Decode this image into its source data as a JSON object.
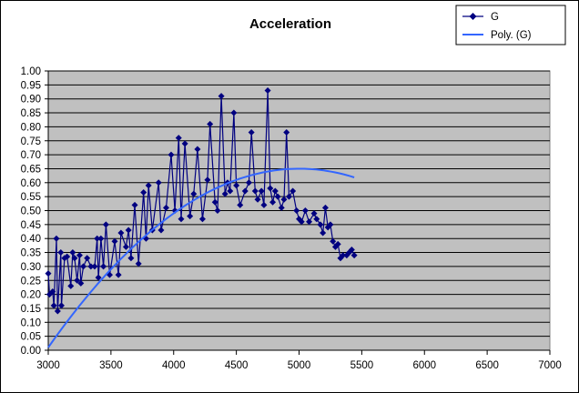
{
  "chart_data": {
    "type": "line",
    "title": "Acceleration",
    "xlabel": "",
    "ylabel": "",
    "xlim": [
      3000,
      7000
    ],
    "ylim": [
      0,
      1.0
    ],
    "x_ticks": [
      "3000",
      "3500",
      "4000",
      "4500",
      "5000",
      "5500",
      "6000",
      "6500",
      "7000"
    ],
    "y_ticks": [
      "0.00",
      "0.05",
      "0.10",
      "0.15",
      "0.20",
      "0.25",
      "0.30",
      "0.35",
      "0.40",
      "0.45",
      "0.50",
      "0.55",
      "0.60",
      "0.65",
      "0.70",
      "0.75",
      "0.80",
      "0.85",
      "0.90",
      "0.95",
      "1.00"
    ],
    "grid": "horizontal",
    "plot_background": "#c0c0c0",
    "legend_position": "top-right",
    "series": [
      {
        "name": "G",
        "color": "#000080",
        "marker": "diamond",
        "points": [
          [
            3000,
            0.275
          ],
          [
            3010,
            0.2
          ],
          [
            3035,
            0.21
          ],
          [
            3045,
            0.16
          ],
          [
            3065,
            0.4
          ],
          [
            3075,
            0.14
          ],
          [
            3100,
            0.35
          ],
          [
            3105,
            0.16
          ],
          [
            3130,
            0.33
          ],
          [
            3150,
            0.335
          ],
          [
            3180,
            0.23
          ],
          [
            3195,
            0.35
          ],
          [
            3210,
            0.33
          ],
          [
            3230,
            0.25
          ],
          [
            3250,
            0.34
          ],
          [
            3260,
            0.24
          ],
          [
            3280,
            0.3
          ],
          [
            3310,
            0.33
          ],
          [
            3340,
            0.3
          ],
          [
            3370,
            0.3
          ],
          [
            3390,
            0.4
          ],
          [
            3400,
            0.26
          ],
          [
            3420,
            0.4
          ],
          [
            3440,
            0.3
          ],
          [
            3460,
            0.45
          ],
          [
            3490,
            0.27
          ],
          [
            3530,
            0.39
          ],
          [
            3560,
            0.27
          ],
          [
            3580,
            0.42
          ],
          [
            3620,
            0.37
          ],
          [
            3640,
            0.43
          ],
          [
            3660,
            0.33
          ],
          [
            3690,
            0.52
          ],
          [
            3720,
            0.31
          ],
          [
            3760,
            0.565
          ],
          [
            3780,
            0.4
          ],
          [
            3800,
            0.59
          ],
          [
            3830,
            0.43
          ],
          [
            3880,
            0.6
          ],
          [
            3900,
            0.43
          ],
          [
            3940,
            0.51
          ],
          [
            3980,
            0.7
          ],
          [
            4010,
            0.5
          ],
          [
            4040,
            0.76
          ],
          [
            4060,
            0.47
          ],
          [
            4090,
            0.74
          ],
          [
            4130,
            0.48
          ],
          [
            4160,
            0.56
          ],
          [
            4190,
            0.72
          ],
          [
            4230,
            0.47
          ],
          [
            4270,
            0.61
          ],
          [
            4290,
            0.81
          ],
          [
            4330,
            0.53
          ],
          [
            4350,
            0.5
          ],
          [
            4380,
            0.91
          ],
          [
            4410,
            0.56
          ],
          [
            4430,
            0.6
          ],
          [
            4450,
            0.57
          ],
          [
            4480,
            0.85
          ],
          [
            4500,
            0.59
          ],
          [
            4530,
            0.52
          ],
          [
            4570,
            0.57
          ],
          [
            4600,
            0.6
          ],
          [
            4620,
            0.78
          ],
          [
            4650,
            0.57
          ],
          [
            4670,
            0.54
          ],
          [
            4700,
            0.57
          ],
          [
            4720,
            0.52
          ],
          [
            4750,
            0.93
          ],
          [
            4770,
            0.58
          ],
          [
            4790,
            0.53
          ],
          [
            4810,
            0.57
          ],
          [
            4830,
            0.55
          ],
          [
            4860,
            0.51
          ],
          [
            4880,
            0.54
          ],
          [
            4900,
            0.78
          ],
          [
            4920,
            0.55
          ],
          [
            4950,
            0.57
          ],
          [
            4980,
            0.5
          ],
          [
            5000,
            0.47
          ],
          [
            5020,
            0.46
          ],
          [
            5050,
            0.5
          ],
          [
            5080,
            0.46
          ],
          [
            5120,
            0.49
          ],
          [
            5140,
            0.47
          ],
          [
            5170,
            0.45
          ],
          [
            5190,
            0.42
          ],
          [
            5210,
            0.51
          ],
          [
            5230,
            0.44
          ],
          [
            5250,
            0.45
          ],
          [
            5270,
            0.39
          ],
          [
            5290,
            0.37
          ],
          [
            5310,
            0.38
          ],
          [
            5330,
            0.33
          ],
          [
            5350,
            0.34
          ],
          [
            5380,
            0.34
          ],
          [
            5400,
            0.35
          ],
          [
            5420,
            0.36
          ],
          [
            5440,
            0.34
          ]
        ]
      },
      {
        "name": "Poly. (G)",
        "color": "#3366ff",
        "type": "trendline",
        "coefficients": [
          0.65,
          -1.6e-07,
          5000
        ]
      }
    ]
  },
  "legend": {
    "items": [
      {
        "label": "G"
      },
      {
        "label": "Poly. (G)"
      }
    ]
  }
}
